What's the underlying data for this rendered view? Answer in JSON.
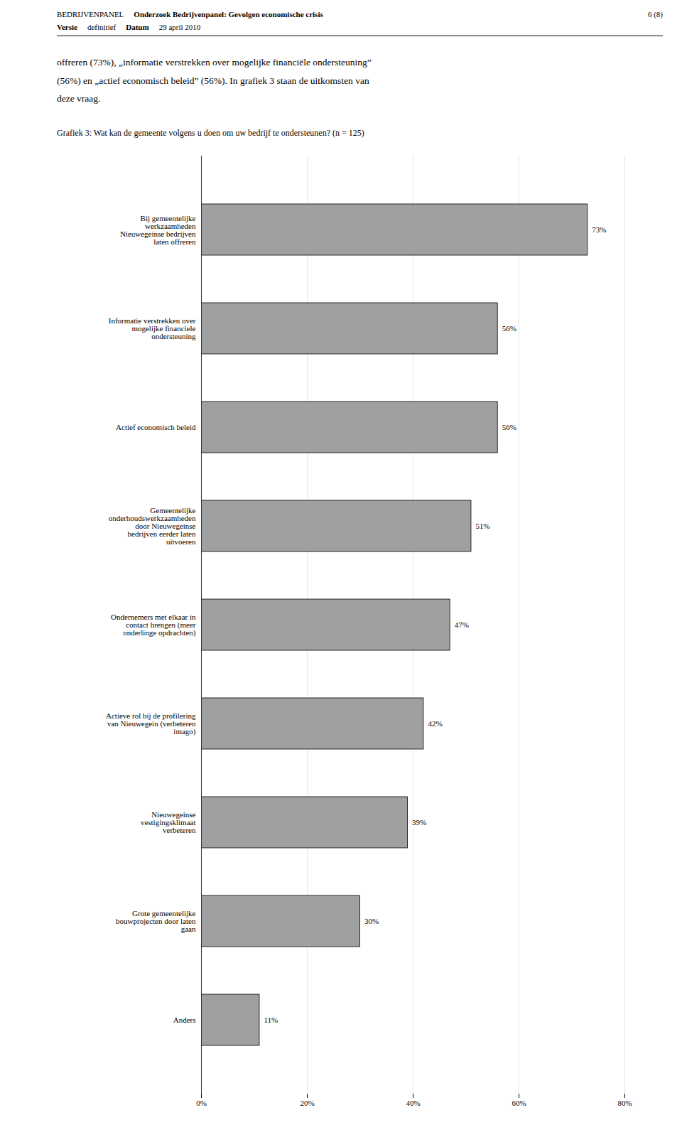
{
  "header": [
    [
      "BEDRIJVENPANEL",
      "Onderzoek Bedrijvenpanel: Gevolgen economische crisis",
      "6 (8)"
    ],
    [
      "Versie",
      "definitief",
      "Datum",
      "29 april 2010"
    ]
  ],
  "body_text": [
    "offreren (73%), „informatie verstrekken over mogelijke financiële ondersteuning”",
    "(56%) en „actief economisch beleid” (56%). In grafiek 3 staan de uitkomsten van",
    "deze vraag."
  ],
  "chart_data": {
    "type": "bar",
    "orientation": "horizontal",
    "title": "Grafiek 3: Wat kan de gemeente volgens u doen om uw bedrijf te ondersteunen? (n = 125)",
    "categories": [
      "Bij gemeentelijke\nwerkzaamheden\nNieuwegeinse bedrijven\nlaten offreren",
      "Informatie verstrekken over\nmogelijke financiele\nondersteuning",
      "Actief economisch beleid",
      "Gemeentelijke\nonderhoudswerkzaamheden\ndoor Nieuwegeinse\nbedrijven eerder laten\nuitvoeren",
      "Ondernemers met elkaar in\ncontact brengen (meer\nonderlinge opdrachten)",
      "Actieve rol bij de profilering\nvan Nieuwegein (verbeteren\nimago)",
      "Nieuwegeinse\nvestigingsklimaat\nverbeteren",
      "Grote gemeentelijke\nbouwprojecten door laten\ngaan",
      "Anders"
    ],
    "values": [
      73,
      56,
      56,
      51,
      47,
      42,
      39,
      30,
      11
    ],
    "value_labels": [
      "73%",
      "56%",
      "56%",
      "51%",
      "47%",
      "42%",
      "39%",
      "30%",
      "11%"
    ],
    "data_labels": true,
    "color": "#a0a0a0",
    "xlim": [
      0,
      80
    ],
    "xticks": [
      {
        "value": 0,
        "label": "0%"
      },
      {
        "value": 20,
        "label": "20%"
      },
      {
        "value": 40,
        "label": "40%"
      },
      {
        "value": 60,
        "label": "60%"
      },
      {
        "value": 80,
        "label": "80%"
      }
    ],
    "grid": true
  }
}
